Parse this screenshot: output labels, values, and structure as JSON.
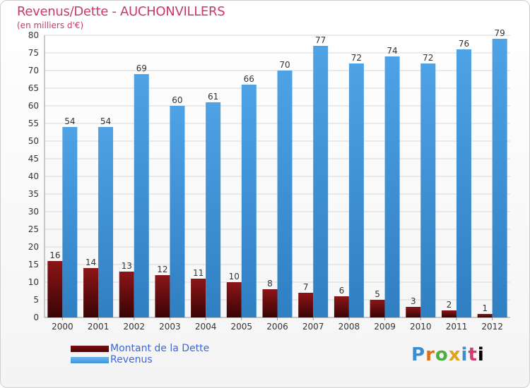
{
  "title": "Revenus/Dette - AUCHONVILLERS",
  "subtitle": "(en milliers d'€)",
  "logo": "Proxiti",
  "colors": {
    "dette": "#7a0e10",
    "revenus": "#3d95dd",
    "title": "#c8396a",
    "legend_text": "#3c67d8",
    "grid": "#d8d8d8"
  },
  "chart_data": {
    "type": "bar",
    "categories": [
      "2000",
      "2001",
      "2002",
      "2003",
      "2004",
      "2005",
      "2006",
      "2007",
      "2008",
      "2009",
      "2010",
      "2011",
      "2012"
    ],
    "series": [
      {
        "name": "Montant de la Dette",
        "values": [
          16,
          14,
          13,
          12,
          11,
          10,
          8,
          7,
          6,
          5,
          3,
          2,
          1
        ]
      },
      {
        "name": "Revenus",
        "values": [
          54,
          54,
          69,
          60,
          61,
          66,
          70,
          77,
          72,
          74,
          72,
          76,
          79
        ]
      }
    ],
    "ylim": [
      0,
      80
    ],
    "yticks": [
      0,
      5,
      10,
      15,
      20,
      25,
      30,
      35,
      40,
      45,
      50,
      55,
      60,
      65,
      70,
      75,
      80
    ],
    "grid": true,
    "legend": "bottom-left"
  }
}
